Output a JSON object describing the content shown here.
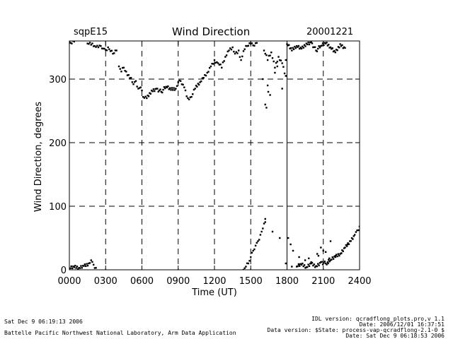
{
  "header": {
    "site": "sqpE15",
    "title": "Wind Direction",
    "date": "20001221"
  },
  "footer": {
    "left_line1": "Sat Dec  9 06:19:13 2006",
    "left_line2": "Battelle Pacific Northwest National Laboratory, Arm Data Application",
    "right_line1": "IDL version: qcradflong_plots.pro,v 1.1",
    "right_line2": "Date: 2006/12/01 16:37:51",
    "right_line3": "Data version: $State: process-vap-qcradflong-2.1-0 $",
    "right_line4": "Date: Sat Dec  9 06:18:53 2006"
  },
  "chart_data": {
    "type": "scatter",
    "title": "Wind Direction",
    "xlabel": "Time (UT)",
    "ylabel": "Wind Direction, degrees",
    "xlim": [
      0,
      2400
    ],
    "ylim": [
      0,
      360
    ],
    "xticks": [
      0,
      300,
      600,
      900,
      1200,
      1500,
      1800,
      2100,
      2400
    ],
    "xtick_labels": [
      "0000",
      "0300",
      "0600",
      "0900",
      "1200",
      "1500",
      "1800",
      "2100",
      "2400"
    ],
    "yticks": [
      0,
      100,
      200,
      300
    ],
    "ytick_labels": [
      "0",
      "100",
      "200",
      "300"
    ],
    "x_gridlines": [
      300,
      600,
      900,
      1200,
      1500,
      2100
    ],
    "x_solid_line": 1800,
    "y_gridlines": [
      100,
      200,
      300
    ],
    "series": [
      {
        "name": "wind_direction",
        "segments": [
          {
            "x": [
              0,
              20,
              40
            ],
            "y": [
              358,
              356,
              359
            ]
          },
          {
            "x": [
              150,
              180,
              210,
              240,
              260,
              280,
              300,
              320,
              340,
              360,
              390
            ],
            "y": [
              356,
              354,
              352,
              350,
              352,
              348,
              346,
              350,
              344,
              340,
              345
            ]
          },
          {
            "x": [
              0,
              40,
              80,
              120,
              160,
              180,
              200,
              220
            ],
            "y": [
              2,
              4,
              3,
              6,
              10,
              15,
              8,
              3
            ]
          },
          {
            "x": [
              410,
              430,
              450,
              480,
              510,
              530,
              550,
              570,
              590,
              610,
              640,
              680,
              720,
              760,
              800,
              840,
              880,
              900,
              920,
              950,
              980,
              1010,
              1040,
              1080,
              1110,
              1140,
              1170,
              1200,
              1230,
              1260,
              1290,
              1320,
              1350,
              1370,
              1400,
              1420,
              1450,
              1470,
              1500,
              1520,
              1550
            ],
            "y": [
              320,
              312,
              318,
              306,
              302,
              292,
              297,
              285,
              287,
              272,
              270,
              282,
              285,
              280,
              288,
              283,
              285,
              295,
              297,
              287,
              270,
              272,
              285,
              295,
              302,
              310,
              320,
              330,
              325,
              318,
              335,
              345,
              350,
              340,
              345,
              330,
              347,
              352,
              356,
              353,
              357
            ]
          },
          {
            "x": [
              1440,
              1460,
              1480,
              1500,
              1520,
              1540,
              1560,
              1580,
              1600,
              1620
            ],
            "y": [
              0,
              5,
              10,
              20,
              30,
              38,
              45,
              55,
              65,
              75
            ]
          },
          {
            "x": [
              1610,
              1640,
              1670,
              1700,
              1730,
              1760,
              1790
            ],
            "y": [
              345,
              330,
              342,
              318,
              335,
              325,
              305
            ]
          },
          {
            "x": [
              1800,
              1840,
              1880,
              1920,
              1960,
              2000,
              2040,
              2080,
              2120,
              2160,
              2200,
              2240,
              2280
            ],
            "y": [
              355,
              345,
              352,
              348,
              356,
              358,
              345,
              352,
              356,
              350,
              342,
              355,
              349
            ]
          },
          {
            "x": [
              1880,
              1920,
              1960,
              2000,
              2040,
              2080,
              2120,
              2160,
              2200,
              2240,
              2280,
              2320,
              2360,
              2380,
              2400
            ],
            "y": [
              5,
              8,
              4,
              10,
              6,
              12,
              10,
              15,
              20,
              25,
              35,
              45,
              55,
              62,
              68
            ]
          }
        ],
        "scatter": {
          "x": [
            1600,
            1620,
            1630,
            1640,
            1645,
            1660,
            1700,
            1720,
            1760,
            1790,
            1810,
            1830,
            1850,
            1900,
            1950,
            2000,
            2050,
            2100,
            2150,
            2200,
            2250,
            2300,
            2080,
            2120,
            2160,
            1620,
            1680,
            1740,
            1790,
            1840,
            1900,
            1980,
            2060,
            2140
          ],
          "y": [
            300,
            260,
            255,
            290,
            280,
            275,
            310,
            320,
            285,
            330,
            50,
            40,
            30,
            20,
            15,
            12,
            25,
            30,
            18,
            22,
            26,
            40,
            35,
            28,
            45,
            80,
            60,
            50,
            10,
            5,
            8,
            18,
            22,
            10
          ]
        }
      }
    ]
  }
}
